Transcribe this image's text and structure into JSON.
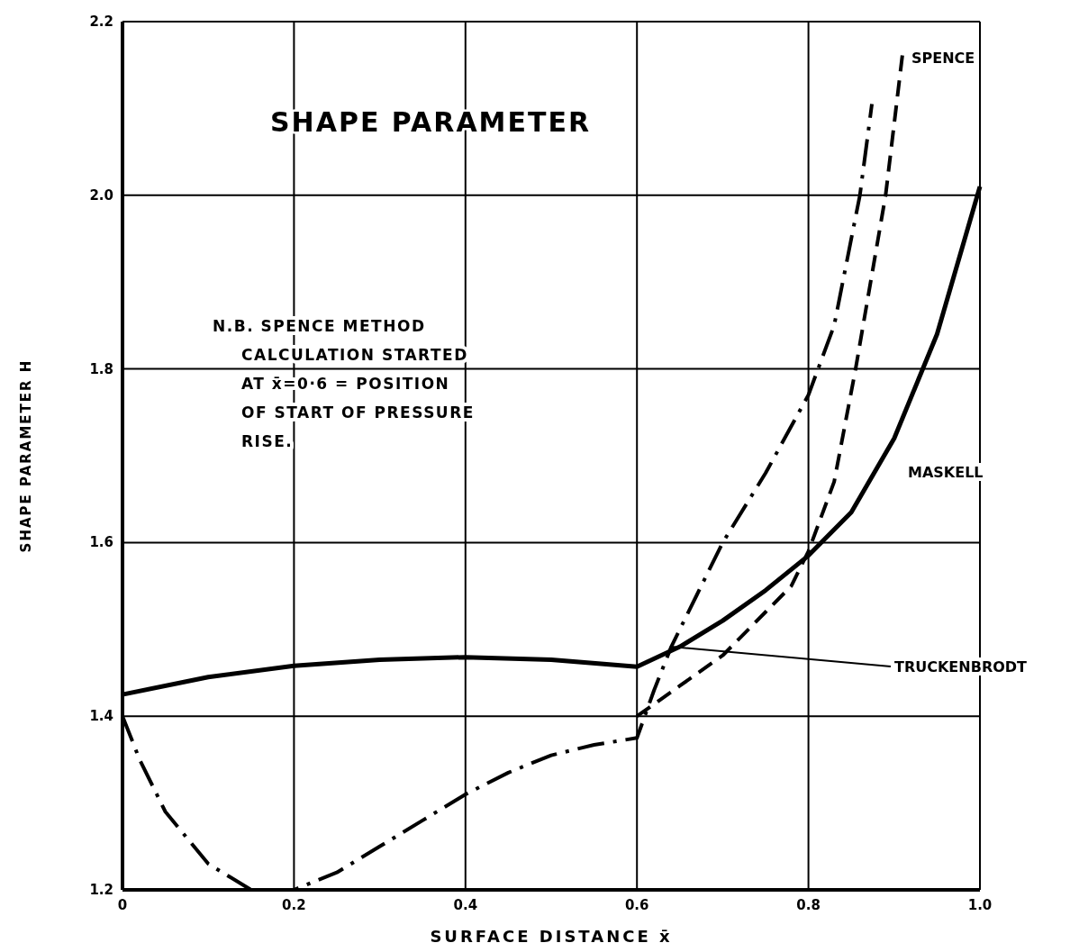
{
  "chart_data": {
    "type": "line",
    "title": "SHAPE PARAMETER",
    "xlabel": "SURFACE DISTANCE x̄",
    "ylabel": "SHAPE PARAMETER H",
    "annotations": [
      "N.B. SPENCE METHOD\nCALCULATION STARTED\nAT x̄=0·6 = POSITION\nOF START OF PRESSURE\nRISE."
    ],
    "xlim": [
      0,
      1
    ],
    "ylim": [
      1.2,
      2.2
    ],
    "xticks": [
      0,
      0.2,
      0.4,
      0.6,
      0.8,
      {
        "value": 1,
        "label": "1.0"
      }
    ],
    "yticks": [
      1.2,
      1.4,
      1.6,
      1.8,
      {
        "value": 2,
        "label": "2.0"
      },
      2.2
    ],
    "grid": true,
    "legend": false,
    "marker": "none",
    "series": [
      {
        "name": "MASKELL",
        "color": "#000000",
        "line_style": "solid",
        "x": [
          0,
          0.1,
          0.2,
          0.3,
          0.4,
          0.5,
          0.6,
          0.65,
          0.7,
          0.75,
          0.8,
          0.85,
          0.9,
          0.95,
          1.0
        ],
        "values": [
          1.425,
          1.445,
          1.458,
          1.465,
          1.468,
          1.465,
          1.457,
          1.48,
          1.51,
          1.545,
          1.585,
          1.635,
          1.72,
          1.84,
          2.01
        ]
      },
      {
        "name": "SPENCE",
        "color": "#000000",
        "line_style": "dashed",
        "x": [
          0.6,
          0.65,
          0.7,
          0.75,
          0.78,
          0.8,
          0.83,
          0.855,
          0.89,
          0.91
        ],
        "values": [
          1.4,
          1.435,
          1.47,
          1.52,
          1.55,
          1.59,
          1.67,
          1.8,
          2.0,
          2.165
        ]
      },
      {
        "name": "TRUCKENBRODT",
        "color": "#000000",
        "line_style": "dashdot",
        "x": [
          0,
          0.02,
          0.05,
          0.1,
          0.15,
          0.2,
          0.25,
          0.3,
          0.35,
          0.4,
          0.45,
          0.5,
          0.55,
          0.6,
          0.62,
          0.64,
          0.67,
          0.7,
          0.75,
          0.8,
          0.83,
          0.86,
          0.874
        ],
        "values": [
          1.4,
          1.35,
          1.29,
          1.23,
          1.2,
          1.2,
          1.22,
          1.25,
          1.28,
          1.31,
          1.335,
          1.355,
          1.367,
          1.375,
          1.43,
          1.48,
          1.54,
          1.6,
          1.68,
          1.77,
          1.85,
          2.0,
          2.105
        ]
      }
    ]
  }
}
